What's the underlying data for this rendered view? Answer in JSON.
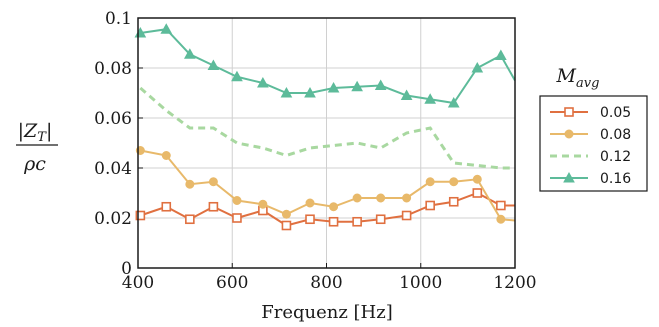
{
  "chart_data": {
    "type": "line",
    "xlabel": "Frequenz [Hz]",
    "ylabel": {
      "numerator": "|Z",
      "subscript": "T",
      "numerator_close": "|",
      "denominator": "ρc"
    },
    "xlim": [
      400,
      1200
    ],
    "ylim": [
      0,
      0.1
    ],
    "xticks": [
      "400",
      "600",
      "800",
      "1000",
      "1200"
    ],
    "yticks": [
      "0",
      "0.02",
      "0.04",
      "0.06",
      "0.08",
      "0.1"
    ],
    "grid": true,
    "legend": {
      "title_main": "M",
      "title_sub": "avg",
      "placement": "right, outside plot"
    },
    "series": [
      {
        "name": "0.05",
        "color": "#E07040",
        "marker": "square-open",
        "dash": "solid",
        "x": [
          405,
          460,
          510,
          560,
          610,
          665,
          715,
          765,
          815,
          865,
          915,
          970,
          1020,
          1070,
          1120,
          1170,
          1200
        ],
        "y": [
          0.021,
          0.0245,
          0.0195,
          0.0245,
          0.02,
          0.023,
          0.017,
          0.0195,
          0.0185,
          0.0185,
          0.0195,
          0.021,
          0.025,
          0.0265,
          0.03,
          0.025,
          0.025
        ]
      },
      {
        "name": "0.08",
        "color": "#E8B96A",
        "marker": "circle",
        "dash": "solid",
        "x": [
          405,
          460,
          510,
          560,
          610,
          665,
          715,
          765,
          815,
          865,
          915,
          970,
          1020,
          1070,
          1120,
          1170,
          1200
        ],
        "y": [
          0.047,
          0.045,
          0.0335,
          0.0345,
          0.027,
          0.0255,
          0.0215,
          0.026,
          0.0245,
          0.028,
          0.028,
          0.028,
          0.0345,
          0.0345,
          0.0355,
          0.0195,
          0.019
        ]
      },
      {
        "name": "0.12",
        "color": "#A8D8A0",
        "marker": "none",
        "dash": "dashed",
        "x": [
          405,
          460,
          510,
          560,
          610,
          665,
          715,
          765,
          815,
          865,
          915,
          970,
          1020,
          1070,
          1120,
          1170,
          1200
        ],
        "y": [
          0.072,
          0.063,
          0.056,
          0.056,
          0.05,
          0.048,
          0.045,
          0.048,
          0.049,
          0.05,
          0.048,
          0.054,
          0.056,
          0.042,
          0.041,
          0.04,
          0.04
        ]
      },
      {
        "name": "0.16",
        "color": "#5DBB9A",
        "marker": "triangle",
        "dash": "solid",
        "x": [
          405,
          460,
          510,
          560,
          610,
          665,
          715,
          765,
          815,
          865,
          915,
          970,
          1020,
          1070,
          1120,
          1170,
          1200
        ],
        "y": [
          0.094,
          0.0955,
          0.0855,
          0.081,
          0.0765,
          0.074,
          0.07,
          0.07,
          0.072,
          0.0725,
          0.073,
          0.069,
          0.0675,
          0.066,
          0.08,
          0.085,
          0.075
        ]
      }
    ]
  }
}
